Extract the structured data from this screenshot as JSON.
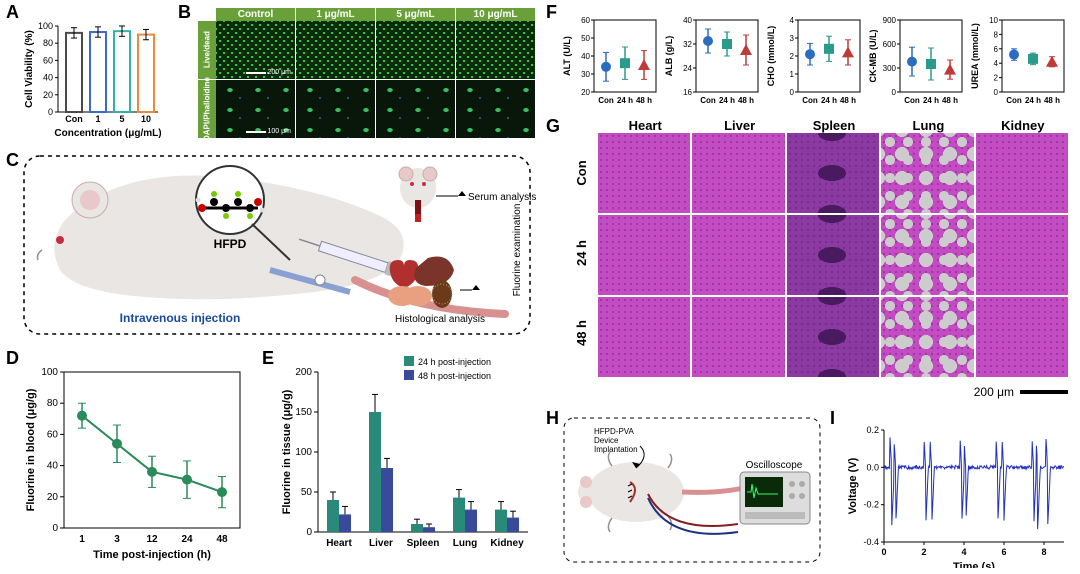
{
  "A": {
    "label": "A",
    "ylabel": "Cell Viability (%)",
    "xlabel": "Concentration (μg/mL)",
    "categories": [
      "Con",
      "1",
      "5",
      "10"
    ],
    "values": [
      92,
      93,
      94,
      90
    ],
    "errors": [
      6,
      6,
      6,
      6
    ],
    "bar_colors": [
      "#4a4a4a",
      "#3a6cd0",
      "#2fb5a8",
      "#e88b3a"
    ],
    "ylim": [
      0,
      100
    ],
    "ytick_step": 20,
    "label_fontsize": 10
  },
  "B": {
    "label": "B",
    "columns": [
      "Control",
      "1 μg/mL",
      "5 μg/mL",
      "10 μg/mL"
    ],
    "rows": [
      "Live/dead",
      "DAPI/Phalloidine"
    ],
    "header_bg": "#6aa03a",
    "scalebars": [
      "200 μm",
      "100 μm"
    ]
  },
  "C": {
    "label": "C",
    "molecule_label": "HFPD",
    "injection_label": "Intravenous injection",
    "serum_label": "Serum analysis",
    "histo_label": "Histological analysis",
    "fluorine_label": "Fluorine examination"
  },
  "D": {
    "label": "D",
    "xlabel": "Time post-injection (h)",
    "ylabel": "Fluorine in blood (μg/g)",
    "x": [
      1,
      3,
      12,
      24,
      48
    ],
    "y": [
      72,
      54,
      36,
      31,
      23
    ],
    "err": [
      8,
      12,
      10,
      12,
      10
    ],
    "color": "#2a8a5a",
    "ylim": [
      0,
      100
    ],
    "ytick_step": 20
  },
  "E": {
    "label": "E",
    "ylabel": "Fluorine in tissue (μg/g)",
    "categories": [
      "Heart",
      "Liver",
      "Spleen",
      "Lung",
      "Kidney"
    ],
    "series": [
      {
        "name": "24 h post-injection",
        "color": "#2a8a7a",
        "values": [
          40,
          150,
          10,
          43,
          28
        ],
        "err": [
          10,
          22,
          6,
          10,
          10
        ]
      },
      {
        "name": "48 h post-injection",
        "color": "#3a4a9a",
        "values": [
          22,
          80,
          6,
          28,
          18
        ],
        "err": [
          10,
          12,
          4,
          10,
          8
        ]
      }
    ],
    "ylim": [
      0,
      200
    ],
    "ytick_step": 50
  },
  "F": {
    "label": "F",
    "panels": [
      {
        "ylabel": "ALT (U/L)",
        "ylim": [
          20,
          60
        ],
        "ytick_step": 10,
        "y": [
          34,
          36,
          35
        ],
        "err": [
          8,
          9,
          8
        ]
      },
      {
        "ylabel": "ALB (g/L)",
        "ylim": [
          16,
          40
        ],
        "ytick_step": 8,
        "y": [
          33,
          32,
          30
        ],
        "err": [
          4,
          4,
          5
        ]
      },
      {
        "ylabel": "CHO (mmol/L)",
        "ylim": [
          0,
          4
        ],
        "ytick_step": 1,
        "y": [
          2.1,
          2.4,
          2.2
        ],
        "err": [
          0.6,
          0.7,
          0.7
        ]
      },
      {
        "ylabel": "CK-MB (U/L)",
        "ylim": [
          0,
          900
        ],
        "ytick_step": 300,
        "y": [
          380,
          350,
          280
        ],
        "err": [
          180,
          200,
          120
        ]
      },
      {
        "ylabel": "UREA (mmol/L)",
        "ylim": [
          0,
          10
        ],
        "ytick_step": 2,
        "y": [
          5.2,
          4.6,
          4.2
        ],
        "err": [
          0.8,
          0.8,
          0.7
        ]
      }
    ],
    "xcats": [
      "Con",
      "24 h",
      "48 h"
    ],
    "colors": [
      "#2a6cc0",
      "#2a9a8a",
      "#c03a3a"
    ],
    "markers": [
      "circle",
      "square",
      "triangle"
    ]
  },
  "G": {
    "label": "G",
    "cols": [
      "Heart",
      "Liver",
      "Spleen",
      "Lung",
      "Kidney"
    ],
    "rows": [
      "Con",
      "24 h",
      "48 h"
    ],
    "scalebar": "200 μm"
  },
  "H": {
    "label": "H",
    "implant_label": "HFPD-PVA\nDevice\nImplantation",
    "osc_label": "Oscilloscope"
  },
  "I": {
    "label": "I",
    "xlabel": "Time (s)",
    "ylabel": "Voltage (V)",
    "xlim": [
      0,
      9
    ],
    "ylim": [
      -0.4,
      0.2
    ],
    "xtick_step": 2,
    "ytick_step": 0.2,
    "color": "#2030c0",
    "spikes": [
      0.3,
      0.5,
      2.0,
      2.3,
      3.8,
      4.0,
      5.6,
      5.9,
      7.4,
      7.6,
      8.1
    ]
  }
}
